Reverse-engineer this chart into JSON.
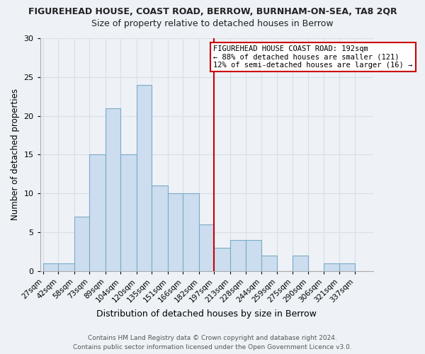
{
  "title": "FIGUREHEAD HOUSE, COAST ROAD, BERROW, BURNHAM-ON-SEA, TA8 2QR",
  "subtitle": "Size of property relative to detached houses in Berrow",
  "xlabel": "Distribution of detached houses by size in Berrow",
  "ylabel": "Number of detached properties",
  "bar_color": "#ccddef",
  "bar_edge_color": "#7aaac8",
  "bins": [
    27,
    42,
    58,
    73,
    89,
    104,
    120,
    135,
    151,
    166,
    182,
    197,
    213,
    228,
    244,
    259,
    275,
    290,
    306,
    321,
    337
  ],
  "counts": [
    1,
    1,
    7,
    15,
    21,
    15,
    24,
    11,
    10,
    10,
    6,
    3,
    4,
    4,
    2,
    0,
    2,
    0,
    1,
    1
  ],
  "bin_labels": [
    "27sqm",
    "42sqm",
    "58sqm",
    "73sqm",
    "89sqm",
    "104sqm",
    "120sqm",
    "135sqm",
    "151sqm",
    "166sqm",
    "182sqm",
    "197sqm",
    "213sqm",
    "228sqm",
    "244sqm",
    "259sqm",
    "275sqm",
    "290sqm",
    "306sqm",
    "321sqm",
    "337sqm"
  ],
  "vline_x": 197,
  "vline_color": "#cc0000",
  "annotation_title": "FIGUREHEAD HOUSE COAST ROAD: 192sqm",
  "annotation_line1": "← 88% of detached houses are smaller (121)",
  "annotation_line2": "12% of semi-detached houses are larger (16) →",
  "annotation_box_color": "#ffffff",
  "annotation_box_edge": "#cc0000",
  "ylim": [
    0,
    30
  ],
  "yticks": [
    0,
    5,
    10,
    15,
    20,
    25,
    30
  ],
  "footer1": "Contains HM Land Registry data © Crown copyright and database right 2024.",
  "footer2": "Contains public sector information licensed under the Open Government Licence v3.0.",
  "bg_color": "#eef2f7",
  "grid_color": "#d8dfe8",
  "title_fontsize": 9,
  "subtitle_fontsize": 9
}
